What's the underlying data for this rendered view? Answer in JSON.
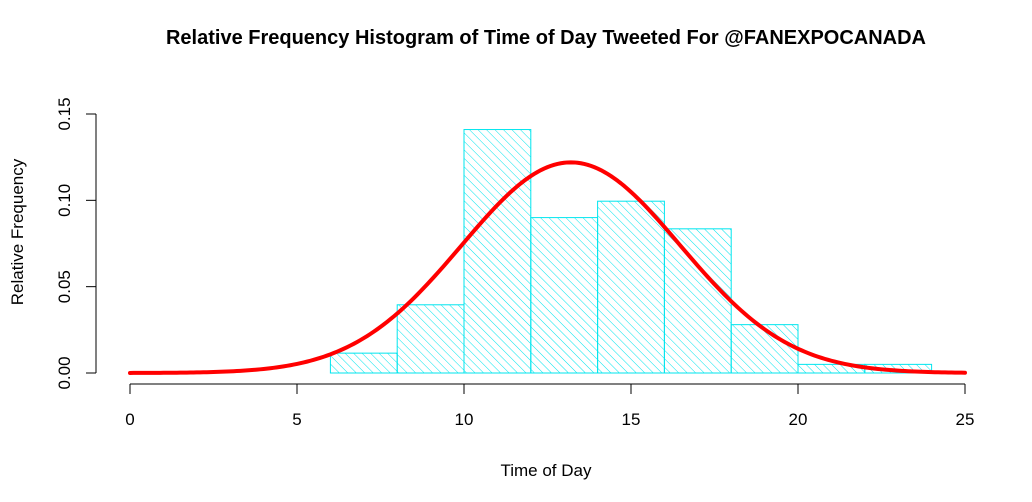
{
  "chart_data": {
    "type": "bar",
    "title": "Relative Frequency Histogram of Time of Day Tweeted For @FANEXPOCANADA",
    "xlabel": "Time of Day",
    "ylabel": "Relative Frequency",
    "xlim": [
      0,
      25
    ],
    "ylim": [
      0,
      0.15
    ],
    "x_ticks": [
      "0",
      "5",
      "10",
      "15",
      "20",
      "25"
    ],
    "x_tick_values": [
      0,
      5,
      10,
      15,
      20,
      25
    ],
    "y_ticks": [
      "0.00",
      "0.05",
      "0.10",
      "0.15"
    ],
    "y_tick_values": [
      0,
      0.05,
      0.1,
      0.15
    ],
    "grid": false,
    "bins": [
      {
        "start": 6,
        "end": 8,
        "value": 0.0115
      },
      {
        "start": 8,
        "end": 10,
        "value": 0.0395
      },
      {
        "start": 10,
        "end": 12,
        "value": 0.141
      },
      {
        "start": 12,
        "end": 14,
        "value": 0.09
      },
      {
        "start": 14,
        "end": 16,
        "value": 0.0995
      },
      {
        "start": 16,
        "end": 18,
        "value": 0.0835
      },
      {
        "start": 18,
        "end": 20,
        "value": 0.028
      },
      {
        "start": 20,
        "end": 22,
        "value": 0.005
      },
      {
        "start": 22,
        "end": 24,
        "value": 0.005
      }
    ],
    "bar_fill": "hatched",
    "bar_color": "#00e5ee",
    "curve": {
      "type": "normal-density",
      "mean": 13.2,
      "sd": 3.27,
      "color": "#ff0000"
    }
  }
}
